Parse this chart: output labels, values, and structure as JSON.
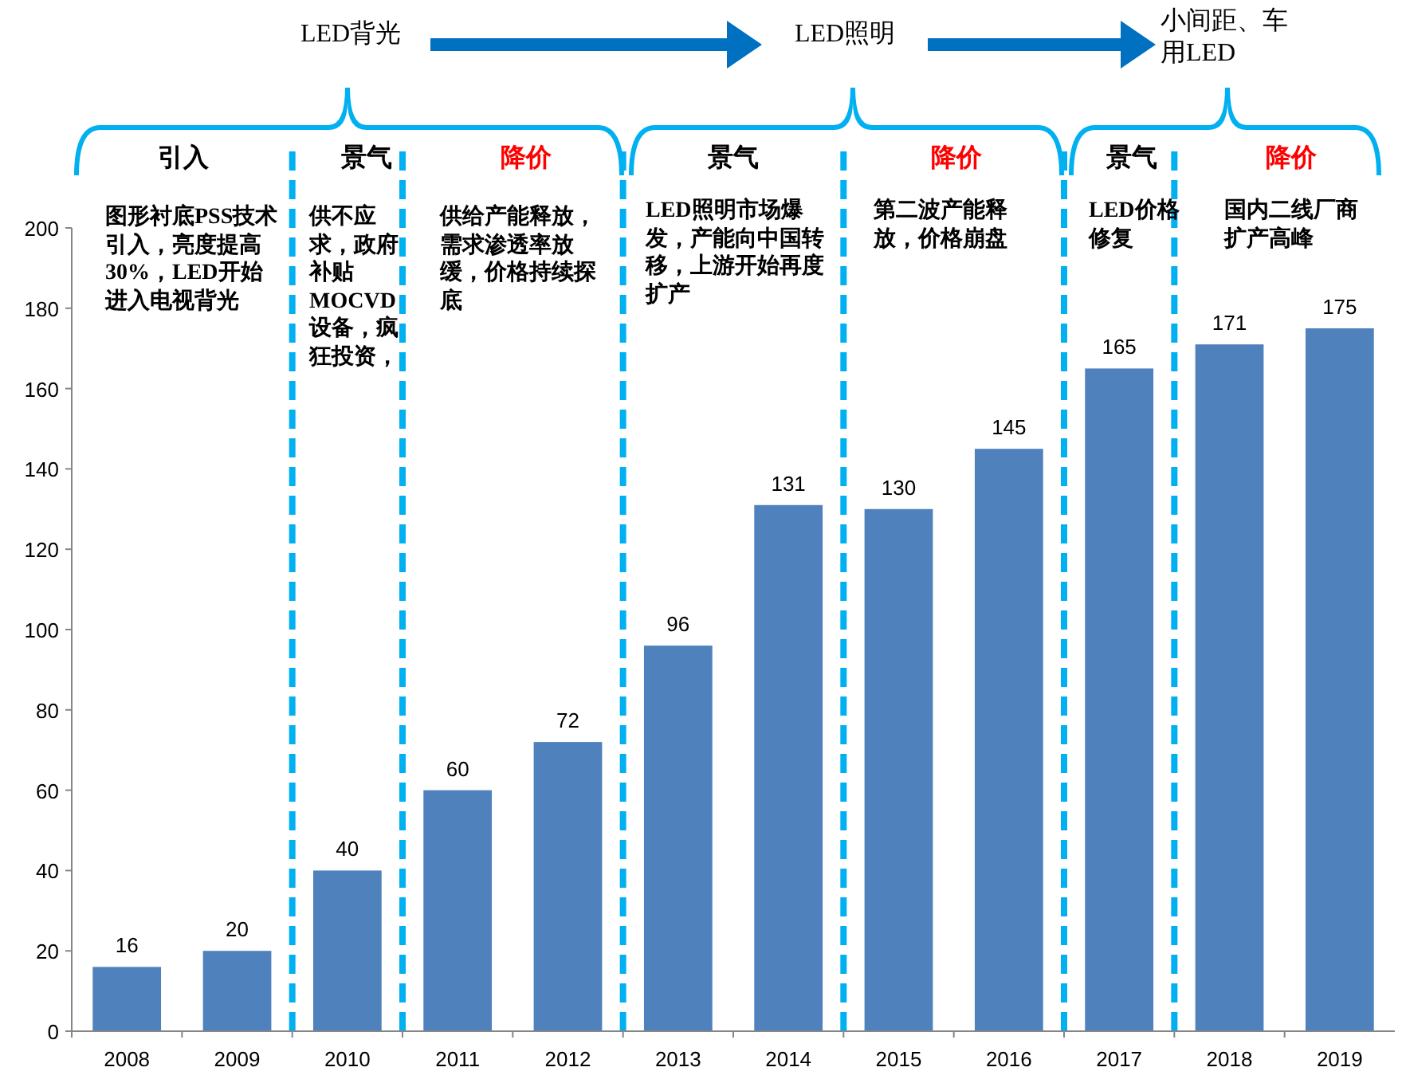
{
  "chart_data": {
    "type": "bar",
    "categories": [
      "2008",
      "2009",
      "2010",
      "2011",
      "2012",
      "2013",
      "2014",
      "2015",
      "2016",
      "2017",
      "2018",
      "2019"
    ],
    "values": [
      16,
      20,
      40,
      60,
      72,
      96,
      131,
      130,
      145,
      165,
      171,
      175
    ],
    "color": "#4f81bd",
    "ylim": [
      0,
      200
    ],
    "yticks": [
      0,
      20,
      40,
      60,
      80,
      100,
      120,
      140,
      160,
      180,
      200
    ],
    "data_labels": true,
    "grid": false,
    "annotations": [
      "LED背光",
      "LED照明",
      "小间距、车用LED",
      "引入",
      "景气",
      "降价",
      "景气",
      "降价",
      "景气",
      "降价",
      "图形衬底PSS技术引入，亮度提高30%，LED开始进入电视背光",
      "供不应求，政府补贴MOCVD设备，疯狂投资，",
      "供给产能释放，需求渗透率放缓，价格持续探底",
      "LED照明市场爆发，产能向中国转移，上游开始再度扩产",
      "第二波产能释放，价格崩盘",
      "LED价格修复",
      "国内二线厂商扩产高峰"
    ]
  }
}
